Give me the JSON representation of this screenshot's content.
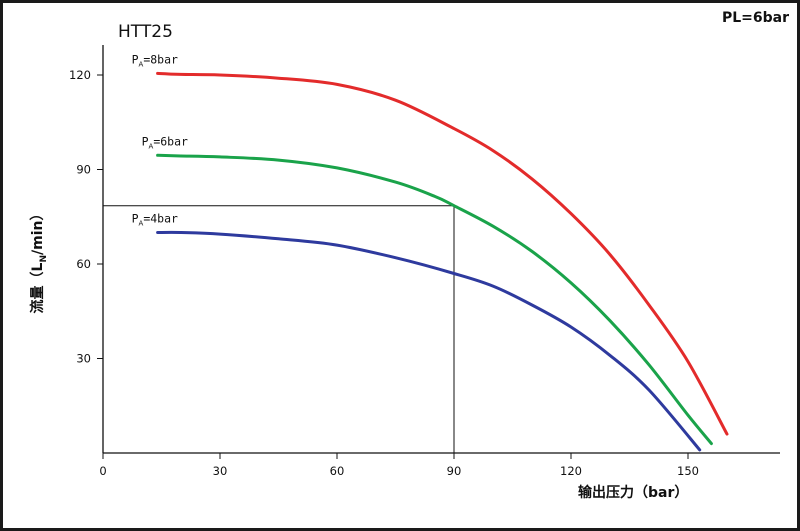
{
  "chart_data": {
    "type": "line",
    "title": "HTT25",
    "corner_note": "PL=6bar",
    "xlabel": "输出压力（bar）",
    "ylabel_parts": {
      "before_sub": "流量（L",
      "sub": "N",
      "after_sub": "/min）"
    },
    "x_ticks": [
      0,
      30,
      60,
      90,
      120,
      150
    ],
    "y_ticks": [
      30,
      60,
      90,
      120
    ],
    "xlim": [
      0,
      165
    ],
    "ylim": [
      0,
      130
    ],
    "grid": false,
    "series": [
      {
        "name": "PA=8bar",
        "label_main": "P",
        "label_sub": "A",
        "label_rest": "=8bar",
        "color": "#e32b2b",
        "x": [
          14,
          20,
          30,
          45,
          60,
          75,
          90,
          100,
          110,
          120,
          130,
          140,
          150,
          160
        ],
        "y": [
          120.5,
          120.2,
          120,
          119,
          117,
          112,
          103,
          96,
          87,
          76,
          63,
          47,
          29,
          6
        ]
      },
      {
        "name": "PA=6bar",
        "label_main": "P",
        "label_sub": "A",
        "label_rest": "=6bar",
        "color": "#1aa34a",
        "x": [
          14,
          20,
          30,
          45,
          60,
          75,
          85,
          90,
          100,
          110,
          120,
          130,
          140,
          150,
          156
        ],
        "y": [
          94.5,
          94.3,
          94,
          93,
          90.5,
          86,
          81.5,
          78.5,
          72,
          64,
          54,
          42,
          28,
          12,
          3
        ]
      },
      {
        "name": "PA=4bar",
        "label_main": "P",
        "label_sub": "A",
        "label_rest": "=4bar",
        "color": "#2e3a9e",
        "x": [
          14,
          20,
          30,
          45,
          60,
          75,
          90,
          100,
          110,
          120,
          130,
          140,
          153
        ],
        "y": [
          70,
          70,
          69.5,
          68,
          66,
          62,
          57,
          53,
          47,
          40,
          31,
          20,
          1
        ]
      }
    ],
    "reference_lines": {
      "x": 90,
      "y": 78.5
    }
  }
}
